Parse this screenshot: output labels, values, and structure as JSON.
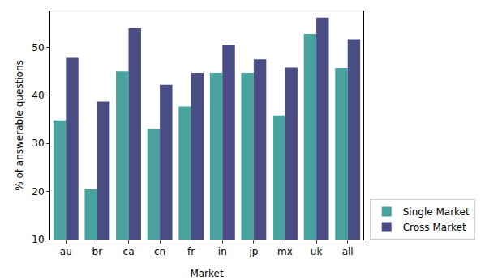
{
  "chart_data": {
    "type": "bar",
    "x_label": "Market",
    "y_label": "% of answerable questions",
    "categories": [
      "au",
      "br",
      "ca",
      "cn",
      "fr",
      "in",
      "jp",
      "mx",
      "uk",
      "all"
    ],
    "series": [
      {
        "name": "Single Market",
        "color": "#4aa29e",
        "values": [
          34.8,
          20.5,
          45.0,
          33.0,
          37.7,
          44.7,
          44.7,
          35.8,
          52.8,
          45.7
        ]
      },
      {
        "name": "Cross Market",
        "color": "#4a4c84",
        "values": [
          47.8,
          38.7,
          54.0,
          42.2,
          44.7,
          50.5,
          47.5,
          45.8,
          56.2,
          51.7
        ]
      }
    ],
    "ylim": [
      10,
      57.5
    ],
    "yticks": [
      10,
      20,
      30,
      40,
      50
    ],
    "grid": false,
    "legend": "lower right"
  }
}
